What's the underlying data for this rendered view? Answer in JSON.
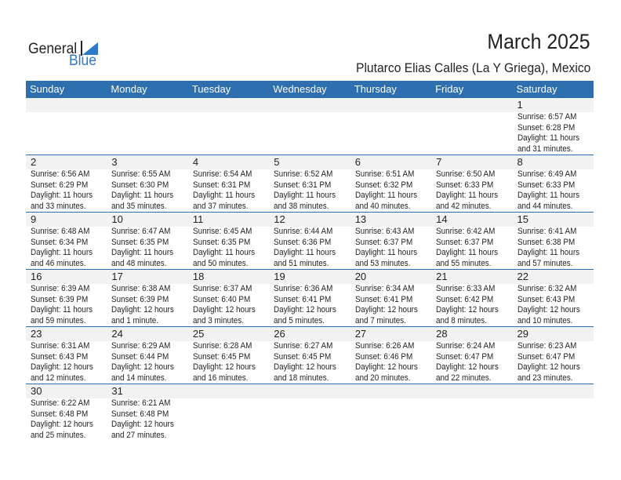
{
  "logo": {
    "text1": "General",
    "text2": "Blue",
    "accent": "#2e78c8"
  },
  "header": {
    "title": "March 2025",
    "subtitle": "Plutarco Elias Calles (La Y Griega), Mexico"
  },
  "colors": {
    "header_bg": "#2e6fb0",
    "band_bg": "#f2f2f2"
  },
  "weekdays": [
    "Sunday",
    "Monday",
    "Tuesday",
    "Wednesday",
    "Thursday",
    "Friday",
    "Saturday"
  ],
  "weeks": [
    [
      null,
      null,
      null,
      null,
      null,
      null,
      {
        "day": "1",
        "sunrise": "Sunrise: 6:57 AM",
        "sunset": "Sunset: 6:28 PM",
        "daylight": "Daylight: 11 hours",
        "minutes": "and 31 minutes."
      }
    ],
    [
      {
        "day": "2",
        "sunrise": "Sunrise: 6:56 AM",
        "sunset": "Sunset: 6:29 PM",
        "daylight": "Daylight: 11 hours",
        "minutes": "and 33 minutes."
      },
      {
        "day": "3",
        "sunrise": "Sunrise: 6:55 AM",
        "sunset": "Sunset: 6:30 PM",
        "daylight": "Daylight: 11 hours",
        "minutes": "and 35 minutes."
      },
      {
        "day": "4",
        "sunrise": "Sunrise: 6:54 AM",
        "sunset": "Sunset: 6:31 PM",
        "daylight": "Daylight: 11 hours",
        "minutes": "and 37 minutes."
      },
      {
        "day": "5",
        "sunrise": "Sunrise: 6:52 AM",
        "sunset": "Sunset: 6:31 PM",
        "daylight": "Daylight: 11 hours",
        "minutes": "and 38 minutes."
      },
      {
        "day": "6",
        "sunrise": "Sunrise: 6:51 AM",
        "sunset": "Sunset: 6:32 PM",
        "daylight": "Daylight: 11 hours",
        "minutes": "and 40 minutes."
      },
      {
        "day": "7",
        "sunrise": "Sunrise: 6:50 AM",
        "sunset": "Sunset: 6:33 PM",
        "daylight": "Daylight: 11 hours",
        "minutes": "and 42 minutes."
      },
      {
        "day": "8",
        "sunrise": "Sunrise: 6:49 AM",
        "sunset": "Sunset: 6:33 PM",
        "daylight": "Daylight: 11 hours",
        "minutes": "and 44 minutes."
      }
    ],
    [
      {
        "day": "9",
        "sunrise": "Sunrise: 6:48 AM",
        "sunset": "Sunset: 6:34 PM",
        "daylight": "Daylight: 11 hours",
        "minutes": "and 46 minutes."
      },
      {
        "day": "10",
        "sunrise": "Sunrise: 6:47 AM",
        "sunset": "Sunset: 6:35 PM",
        "daylight": "Daylight: 11 hours",
        "minutes": "and 48 minutes."
      },
      {
        "day": "11",
        "sunrise": "Sunrise: 6:45 AM",
        "sunset": "Sunset: 6:35 PM",
        "daylight": "Daylight: 11 hours",
        "minutes": "and 50 minutes."
      },
      {
        "day": "12",
        "sunrise": "Sunrise: 6:44 AM",
        "sunset": "Sunset: 6:36 PM",
        "daylight": "Daylight: 11 hours",
        "minutes": "and 51 minutes."
      },
      {
        "day": "13",
        "sunrise": "Sunrise: 6:43 AM",
        "sunset": "Sunset: 6:37 PM",
        "daylight": "Daylight: 11 hours",
        "minutes": "and 53 minutes."
      },
      {
        "day": "14",
        "sunrise": "Sunrise: 6:42 AM",
        "sunset": "Sunset: 6:37 PM",
        "daylight": "Daylight: 11 hours",
        "minutes": "and 55 minutes."
      },
      {
        "day": "15",
        "sunrise": "Sunrise: 6:41 AM",
        "sunset": "Sunset: 6:38 PM",
        "daylight": "Daylight: 11 hours",
        "minutes": "and 57 minutes."
      }
    ],
    [
      {
        "day": "16",
        "sunrise": "Sunrise: 6:39 AM",
        "sunset": "Sunset: 6:39 PM",
        "daylight": "Daylight: 11 hours",
        "minutes": "and 59 minutes."
      },
      {
        "day": "17",
        "sunrise": "Sunrise: 6:38 AM",
        "sunset": "Sunset: 6:39 PM",
        "daylight": "Daylight: 12 hours",
        "minutes": "and 1 minute."
      },
      {
        "day": "18",
        "sunrise": "Sunrise: 6:37 AM",
        "sunset": "Sunset: 6:40 PM",
        "daylight": "Daylight: 12 hours",
        "minutes": "and 3 minutes."
      },
      {
        "day": "19",
        "sunrise": "Sunrise: 6:36 AM",
        "sunset": "Sunset: 6:41 PM",
        "daylight": "Daylight: 12 hours",
        "minutes": "and 5 minutes."
      },
      {
        "day": "20",
        "sunrise": "Sunrise: 6:34 AM",
        "sunset": "Sunset: 6:41 PM",
        "daylight": "Daylight: 12 hours",
        "minutes": "and 7 minutes."
      },
      {
        "day": "21",
        "sunrise": "Sunrise: 6:33 AM",
        "sunset": "Sunset: 6:42 PM",
        "daylight": "Daylight: 12 hours",
        "minutes": "and 8 minutes."
      },
      {
        "day": "22",
        "sunrise": "Sunrise: 6:32 AM",
        "sunset": "Sunset: 6:43 PM",
        "daylight": "Daylight: 12 hours",
        "minutes": "and 10 minutes."
      }
    ],
    [
      {
        "day": "23",
        "sunrise": "Sunrise: 6:31 AM",
        "sunset": "Sunset: 6:43 PM",
        "daylight": "Daylight: 12 hours",
        "minutes": "and 12 minutes."
      },
      {
        "day": "24",
        "sunrise": "Sunrise: 6:29 AM",
        "sunset": "Sunset: 6:44 PM",
        "daylight": "Daylight: 12 hours",
        "minutes": "and 14 minutes."
      },
      {
        "day": "25",
        "sunrise": "Sunrise: 6:28 AM",
        "sunset": "Sunset: 6:45 PM",
        "daylight": "Daylight: 12 hours",
        "minutes": "and 16 minutes."
      },
      {
        "day": "26",
        "sunrise": "Sunrise: 6:27 AM",
        "sunset": "Sunset: 6:45 PM",
        "daylight": "Daylight: 12 hours",
        "minutes": "and 18 minutes."
      },
      {
        "day": "27",
        "sunrise": "Sunrise: 6:26 AM",
        "sunset": "Sunset: 6:46 PM",
        "daylight": "Daylight: 12 hours",
        "minutes": "and 20 minutes."
      },
      {
        "day": "28",
        "sunrise": "Sunrise: 6:24 AM",
        "sunset": "Sunset: 6:47 PM",
        "daylight": "Daylight: 12 hours",
        "minutes": "and 22 minutes."
      },
      {
        "day": "29",
        "sunrise": "Sunrise: 6:23 AM",
        "sunset": "Sunset: 6:47 PM",
        "daylight": "Daylight: 12 hours",
        "minutes": "and 23 minutes."
      }
    ],
    [
      {
        "day": "30",
        "sunrise": "Sunrise: 6:22 AM",
        "sunset": "Sunset: 6:48 PM",
        "daylight": "Daylight: 12 hours",
        "minutes": "and 25 minutes."
      },
      {
        "day": "31",
        "sunrise": "Sunrise: 6:21 AM",
        "sunset": "Sunset: 6:48 PM",
        "daylight": "Daylight: 12 hours",
        "minutes": "and 27 minutes."
      },
      null,
      null,
      null,
      null,
      null
    ]
  ]
}
